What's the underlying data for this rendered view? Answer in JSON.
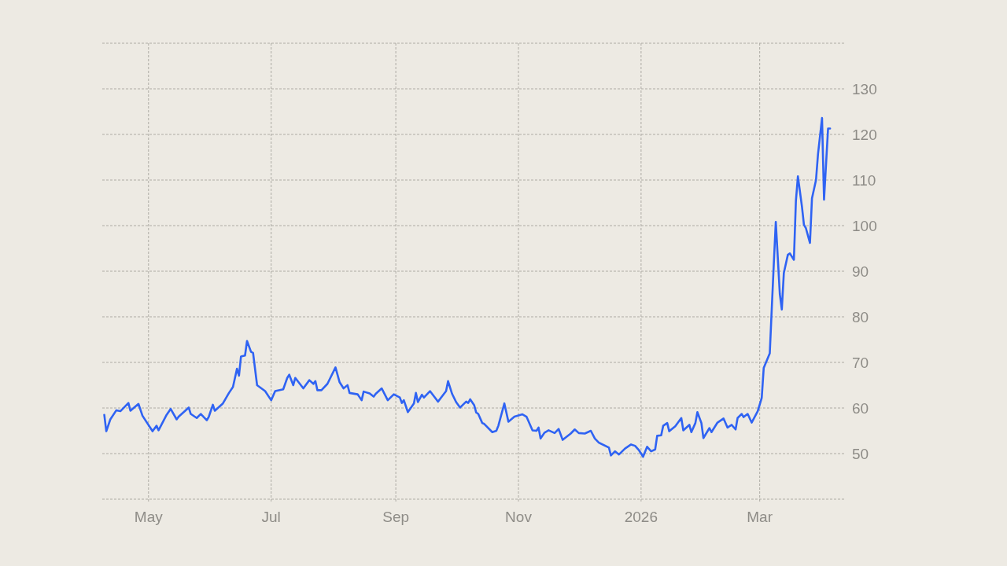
{
  "chart_data": {
    "type": "line",
    "x": [
      "2025-04-09",
      "2025-04-10",
      "2025-04-12",
      "2025-04-15",
      "2025-04-17",
      "2025-04-21",
      "2025-04-22",
      "2025-04-26",
      "2025-04-28",
      "2025-05-03",
      "2025-05-05",
      "2025-05-06",
      "2025-05-10",
      "2025-05-12",
      "2025-05-15",
      "2025-05-16",
      "2025-05-21",
      "2025-05-22",
      "2025-05-25",
      "2025-05-27",
      "2025-05-30",
      "2025-05-31",
      "2025-06-02",
      "2025-06-03",
      "2025-06-07",
      "2025-06-10",
      "2025-06-12",
      "2025-06-14",
      "2025-06-15",
      "2025-06-16",
      "2025-06-18",
      "2025-06-19",
      "2025-06-21",
      "2025-06-22",
      "2025-06-24",
      "2025-06-28",
      "2025-07-01",
      "2025-07-03",
      "2025-07-07",
      "2025-07-09",
      "2025-07-10",
      "2025-07-12",
      "2025-07-13",
      "2025-07-17",
      "2025-07-20",
      "2025-07-22",
      "2025-07-23",
      "2025-07-24",
      "2025-07-26",
      "2025-07-29",
      "2025-08-02",
      "2025-08-04",
      "2025-08-06",
      "2025-08-08",
      "2025-08-09",
      "2025-08-13",
      "2025-08-15",
      "2025-08-16",
      "2025-08-19",
      "2025-08-21",
      "2025-08-22",
      "2025-08-25",
      "2025-08-28",
      "2025-08-31",
      "2025-09-03",
      "2025-09-04",
      "2025-09-05",
      "2025-09-07",
      "2025-09-10",
      "2025-09-11",
      "2025-09-12",
      "2025-09-14",
      "2025-09-15",
      "2025-09-18",
      "2025-09-22",
      "2025-09-26",
      "2025-09-27",
      "2025-09-29",
      "2025-10-01",
      "2025-10-03",
      "2025-10-06",
      "2025-10-07",
      "2025-10-08",
      "2025-10-10",
      "2025-10-11",
      "2025-10-12",
      "2025-10-14",
      "2025-10-15",
      "2025-10-19",
      "2025-10-21",
      "2025-10-22",
      "2025-10-25",
      "2025-10-27",
      "2025-10-30",
      "2025-11-03",
      "2025-11-05",
      "2025-11-08",
      "2025-11-10",
      "2025-11-11",
      "2025-11-12",
      "2025-11-14",
      "2025-11-16",
      "2025-11-19",
      "2025-11-21",
      "2025-11-23",
      "2025-11-27",
      "2025-11-29",
      "2025-12-01",
      "2025-12-04",
      "2025-12-07",
      "2025-12-09",
      "2025-12-11",
      "2025-12-16",
      "2025-12-17",
      "2025-12-19",
      "2025-12-21",
      "2025-12-24",
      "2025-12-27",
      "2025-12-29",
      "2025-12-31",
      "2026-01-02",
      "2026-01-04",
      "2026-01-06",
      "2026-01-08",
      "2026-01-09",
      "2026-01-11",
      "2026-01-12",
      "2026-01-14",
      "2026-01-15",
      "2026-01-18",
      "2026-01-21",
      "2026-01-22",
      "2026-01-25",
      "2026-01-26",
      "2026-01-28",
      "2026-01-29",
      "2026-01-31",
      "2026-02-01",
      "2026-02-04",
      "2026-02-05",
      "2026-02-08",
      "2026-02-11",
      "2026-02-13",
      "2026-02-15",
      "2026-02-17",
      "2026-02-18",
      "2026-02-20",
      "2026-02-21",
      "2026-02-23",
      "2026-02-25",
      "2026-02-28",
      "2026-03-02",
      "2026-03-03",
      "2026-03-06",
      "2026-03-08",
      "2026-03-09",
      "2026-03-11",
      "2026-03-12",
      "2026-03-13",
      "2026-03-15",
      "2026-03-16",
      "2026-03-18",
      "2026-03-19",
      "2026-03-20",
      "2026-03-22",
      "2026-03-23",
      "2026-03-24",
      "2026-03-26",
      "2026-03-27",
      "2026-03-29",
      "2026-03-30",
      "2026-04-01",
      "2026-04-02",
      "2026-04-04",
      "2026-04-05"
    ],
    "series": [
      {
        "color": "#2f63f3",
        "values": [
          58.5,
          54.9,
          57.5,
          59.5,
          59.3,
          61.1,
          59.4,
          60.9,
          58.3,
          54.9,
          56.1,
          55.1,
          58.5,
          59.8,
          57.5,
          58.1,
          60.1,
          58.7,
          57.8,
          58.7,
          57.3,
          58.1,
          60.7,
          59.4,
          61,
          63.3,
          64.6,
          68.6,
          67.1,
          71.3,
          71.5,
          74.7,
          72.3,
          72.1,
          65,
          63.7,
          61.7,
          63.7,
          64.1,
          66.6,
          67.3,
          65,
          66.6,
          64.3,
          66.1,
          65.3,
          65.9,
          63.9,
          63.9,
          65.3,
          68.9,
          65.7,
          64.3,
          65,
          63.3,
          63,
          61.7,
          63.6,
          63.2,
          62.5,
          63.1,
          64.3,
          61.7,
          63,
          62.3,
          61.1,
          61.7,
          59.1,
          61,
          63.3,
          61.3,
          62.9,
          62.3,
          63.7,
          61.4,
          63.7,
          65.9,
          63.1,
          61.3,
          60.1,
          61.4,
          61.1,
          61.9,
          60.6,
          59,
          58.7,
          56.7,
          56.5,
          54.7,
          55,
          56.1,
          61,
          57,
          58.1,
          58.6,
          58.1,
          55.1,
          55,
          55.7,
          53.3,
          54.6,
          55.1,
          54.5,
          55.4,
          53,
          54.4,
          55.3,
          54.5,
          54.4,
          55,
          53.3,
          52.4,
          51.3,
          49.6,
          50.5,
          49.8,
          51.1,
          52,
          51.7,
          50.7,
          49.3,
          51.5,
          50.5,
          50.9,
          53.9,
          54,
          56.1,
          56.7,
          54.9,
          56,
          57.8,
          55.1,
          56.3,
          54.7,
          56.7,
          59.1,
          56.7,
          53.4,
          55.6,
          54.7,
          56.8,
          57.7,
          55.7,
          56.3,
          55.3,
          57.8,
          58.7,
          58,
          58.7,
          56.8,
          59.3,
          62.2,
          68.8,
          72,
          91.6,
          100.8,
          85,
          81.6,
          89.6,
          93.6,
          93.9,
          92.5,
          105.4,
          110.8,
          104.2,
          100.2,
          99.4,
          96.2,
          106,
          110,
          115.7,
          123.6,
          105.7,
          121.3,
          121.3
        ]
      }
    ],
    "xlim": [
      "2025-04-08",
      "2026-04-12"
    ],
    "xticks": [
      {
        "value": "2025-05-01",
        "label": "May"
      },
      {
        "value": "2025-07-01",
        "label": "Jul"
      },
      {
        "value": "2025-09-01",
        "label": "Sep"
      },
      {
        "value": "2025-11-01",
        "label": "Nov"
      },
      {
        "value": "2026-01-01",
        "label": "2026"
      },
      {
        "value": "2026-03-01",
        "label": "Mar"
      }
    ],
    "ylim": [
      40,
      140
    ],
    "yticks": [
      {
        "value": 40,
        "label": null
      },
      50,
      60,
      70,
      80,
      90,
      100,
      110,
      120,
      130,
      {
        "value": 140,
        "label": null
      }
    ],
    "grid": true
  }
}
